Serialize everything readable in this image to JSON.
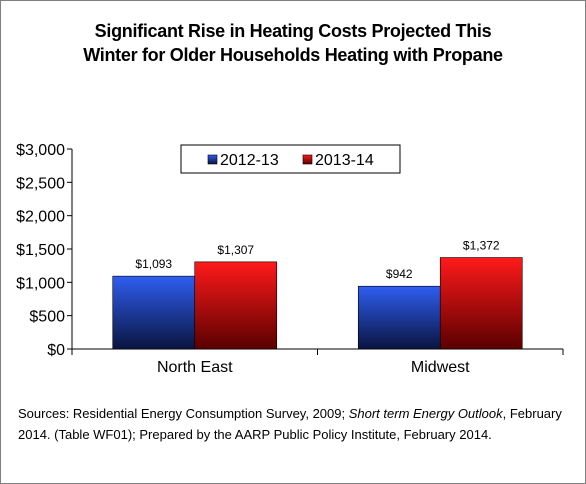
{
  "chart_data": {
    "type": "bar",
    "title": [
      "Significant Rise in Heating Costs Projected This",
      "Winter for Older Households Heating with Propane"
    ],
    "categories": [
      "North East",
      "Midwest"
    ],
    "series": [
      {
        "name": "2012-13",
        "values": [
          1093,
          942
        ],
        "labels": [
          "$1,093",
          "$942"
        ]
      },
      {
        "name": "2013-14",
        "values": [
          1307,
          1372
        ],
        "labels": [
          "$1,307",
          "$1,372"
        ]
      }
    ],
    "ylim": [
      0,
      3000
    ],
    "yticks": [
      0,
      500,
      1000,
      1500,
      2000,
      2500,
      3000
    ],
    "ytick_labels": [
      "$0",
      "$500",
      "$1,000",
      "$1,500",
      "$2,000",
      "$2,500",
      "$3,000"
    ],
    "legend_position": "top-center",
    "grid": false
  },
  "colors": {
    "series_2012": "#2f5ef0",
    "series_2012_dark": "#0a1440",
    "series_2013": "#ff1a1a",
    "series_2013_dark": "#5a0000"
  },
  "source": {
    "prefix": "Sources: Residential Energy Consumption Survey, 2009; ",
    "italic": "Short term Energy Outlook",
    "suffix": ", February 2014.  (Table WF01); Prepared by the AARP Public Policy Institute, February 2014."
  }
}
